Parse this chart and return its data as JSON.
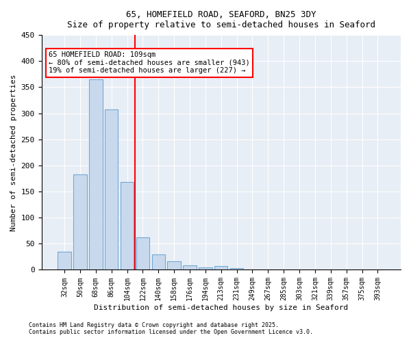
{
  "title1": "65, HOMEFIELD ROAD, SEAFORD, BN25 3DY",
  "title2": "Size of property relative to semi-detached houses in Seaford",
  "xlabel": "Distribution of semi-detached houses by size in Seaford",
  "ylabel": "Number of semi-detached properties",
  "categories": [
    "32sqm",
    "50sqm",
    "68sqm",
    "86sqm",
    "104sqm",
    "122sqm",
    "140sqm",
    "158sqm",
    "176sqm",
    "194sqm",
    "213sqm",
    "231sqm",
    "249sqm",
    "267sqm",
    "285sqm",
    "303sqm",
    "321sqm",
    "339sqm",
    "357sqm",
    "375sqm",
    "393sqm"
  ],
  "values": [
    35,
    183,
    365,
    307,
    168,
    62,
    30,
    17,
    8,
    5,
    7,
    3,
    0,
    0,
    0,
    0,
    0,
    0,
    0,
    0,
    0
  ],
  "bar_color": "#c9d9ed",
  "bar_edge_color": "#6fa8d6",
  "vline_x": 4.5,
  "vline_color": "red",
  "annotation_title": "65 HOMEFIELD ROAD: 109sqm",
  "annotation_line2": "← 80% of semi-detached houses are smaller (943)",
  "annotation_line3": "19% of semi-detached houses are larger (227) →",
  "annotation_box_color": "red",
  "ylim": [
    0,
    450
  ],
  "yticks": [
    0,
    50,
    100,
    150,
    200,
    250,
    300,
    350,
    400,
    450
  ],
  "bg_color": "#e8eef5",
  "footer1": "Contains HM Land Registry data © Crown copyright and database right 2025.",
  "footer2": "Contains public sector information licensed under the Open Government Licence v3.0."
}
